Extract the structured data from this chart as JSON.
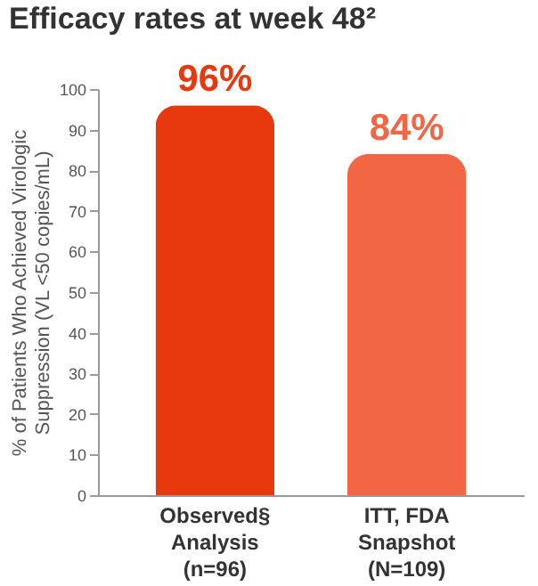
{
  "chart_data": {
    "type": "bar",
    "title": "Efficacy rates at week 48²",
    "ylabel": "% of Patients Who Achieved Virologic\nSuppression (VL <50 copies/mL)",
    "categories": [
      "Observed§\nAnalysis\n(n=96)",
      "ITT, FDA\nSnapshot\n(N=109)"
    ],
    "values": [
      96,
      84
    ],
    "colors": [
      "#e8380d",
      "#f26644"
    ],
    "value_labels": [
      "96%",
      "84%"
    ],
    "ylim": [
      0,
      100
    ],
    "yticks": [
      0,
      10,
      20,
      30,
      40,
      50,
      60,
      70,
      80,
      90,
      100
    ],
    "grid": false
  }
}
